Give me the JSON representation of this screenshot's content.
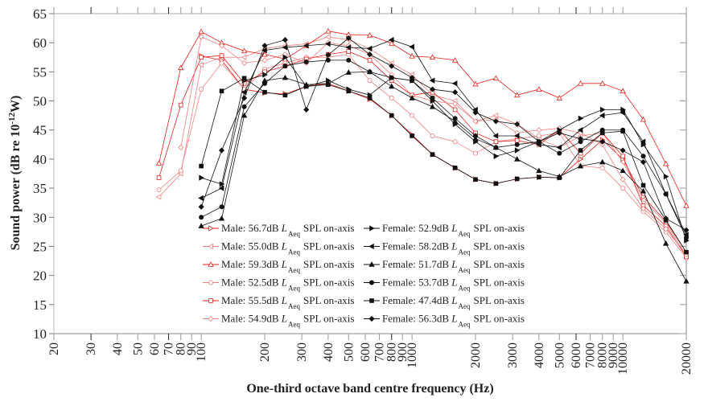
{
  "chart_data": {
    "type": "line",
    "title": "",
    "xlabel": "One-third octave band centre frequency (Hz)",
    "ylabel_main": "Sound power (dB re 10",
    "ylabel_sup": "-12",
    "ylabel_end": "W)",
    "xscale": "log",
    "xlim": [
      20,
      20000
    ],
    "ylim": [
      10,
      65
    ],
    "grid": false,
    "legend_position": "bottom-center",
    "yticks": [
      10,
      15,
      20,
      25,
      30,
      35,
      40,
      45,
      50,
      55,
      60,
      65
    ],
    "xticks": [
      20,
      30,
      40,
      50,
      60,
      70,
      80,
      90,
      100,
      200,
      300,
      400,
      500,
      600,
      700,
      800,
      900,
      1000,
      2000,
      3000,
      4000,
      5000,
      6000,
      7000,
      8000,
      9000,
      10000,
      20000
    ],
    "x": [
      63,
      80,
      100,
      125,
      160,
      200,
      250,
      315,
      400,
      500,
      630,
      800,
      1000,
      1250,
      1600,
      2000,
      2500,
      3150,
      4000,
      5000,
      6300,
      8000,
      10000,
      12500,
      16000,
      20000
    ],
    "series": [
      {
        "name": "Male: 56.7dB",
        "suffix": "SPL on-axis",
        "group": "male",
        "color": "#e8201a",
        "marker": "triangle-right-open",
        "values": [
          null,
          null,
          57.7,
          57.0,
          52.0,
          51.4,
          51.2,
          52.5,
          53.0,
          51.7,
          50.3,
          47.5,
          44.2,
          40.8,
          38.5,
          36.5,
          35.8,
          36.6,
          36.9,
          36.8,
          40.0,
          43.3,
          40.0,
          33.5,
          29.3,
          24.0
        ]
      },
      {
        "name": "Male: 55.0dB",
        "suffix": "SPL on-axis",
        "group": "male",
        "color": "#f08080",
        "marker": "triangle-left-open",
        "values": [
          33.5,
          37.5,
          56.2,
          57.5,
          57.5,
          59.0,
          59.5,
          59.8,
          61.0,
          60.5,
          59.0,
          56.5,
          54.5,
          51.0,
          50.0,
          46.5,
          47.5,
          46.0,
          43.5,
          42.0,
          44.0,
          44.5,
          39.5,
          33.0,
          29.0,
          23.5
        ]
      },
      {
        "name": "Male: 59.3dB",
        "suffix": "SPL on-axis",
        "group": "male",
        "color": "#e8201a",
        "marker": "triangle-up-open",
        "values": [
          39.3,
          55.7,
          61.9,
          60.0,
          58.6,
          58.0,
          57.2,
          59.5,
          62.0,
          61.4,
          61.3,
          59.9,
          57.7,
          57.5,
          57.0,
          52.9,
          53.9,
          51.0,
          52.0,
          50.5,
          53.0,
          53.0,
          51.7,
          46.8,
          39.2,
          32.0
        ]
      },
      {
        "name": "Male: 52.5dB",
        "suffix": "SPL on-axis",
        "group": "male",
        "color": "#f08080",
        "marker": "circle-open",
        "values": [
          34.7,
          38.0,
          52.0,
          56.5,
          52.0,
          55.5,
          56.5,
          57.5,
          57.5,
          58.0,
          53.5,
          50.5,
          47.5,
          44.0,
          43.0,
          41.0,
          43.0,
          43.5,
          44.0,
          44.5,
          38.8,
          38.5,
          35.0,
          31.0,
          27.5,
          23.0
        ]
      },
      {
        "name": "Male: 55.5dB",
        "suffix": "SPL on-axis",
        "group": "male",
        "color": "#e8201a",
        "marker": "square-open",
        "values": [
          36.8,
          49.3,
          57.5,
          57.8,
          53.0,
          55.0,
          56.0,
          57.2,
          58.0,
          58.5,
          57.0,
          53.5,
          51.0,
          51.5,
          48.5,
          44.5,
          43.0,
          43.2,
          42.5,
          45.0,
          41.0,
          44.5,
          40.5,
          32.0,
          28.5,
          23.2
        ]
      },
      {
        "name": "Male: 54.9dB",
        "suffix": "SPL on-axis",
        "group": "male",
        "color": "#f08080",
        "marker": "diamond-open",
        "values": [
          null,
          42.0,
          61.0,
          59.5,
          56.5,
          57.0,
          58.0,
          56.5,
          60.0,
          59.5,
          58.0,
          54.5,
          51.0,
          50.0,
          49.5,
          46.5,
          46.8,
          44.5,
          45.0,
          45.3,
          44.5,
          42.5,
          36.5,
          31.5,
          28.0,
          23.6
        ]
      },
      {
        "name": "Female: 52.9dB",
        "suffix": "SPL on-axis",
        "group": "female",
        "color": "#111111",
        "marker": "triangle-right-filled",
        "values": [
          null,
          null,
          36.8,
          35.7,
          53.5,
          54.5,
          57.5,
          52.5,
          53.5,
          52.0,
          51.0,
          54.0,
          53.5,
          50.0,
          46.0,
          43.0,
          40.5,
          41.5,
          43.0,
          45.0,
          47.0,
          48.5,
          48.5,
          42.5,
          37.0,
          26.0
        ]
      },
      {
        "name": "Female: 58.2dB",
        "suffix": "SPL on-axis",
        "group": "female",
        "color": "#111111",
        "marker": "triangle-left-filled",
        "values": [
          null,
          null,
          33.3,
          35.0,
          51.5,
          58.7,
          59.2,
          59.5,
          59.8,
          59.2,
          59.0,
          60.5,
          59.3,
          53.5,
          53.0,
          48.5,
          44.0,
          44.0,
          42.5,
          42.0,
          45.0,
          47.5,
          48.0,
          43.0,
          34.0,
          27.0
        ]
      },
      {
        "name": "Female: 51.7dB",
        "suffix": "SPL on-axis",
        "group": "female",
        "color": "#111111",
        "marker": "triangle-up-filled",
        "values": [
          null,
          null,
          28.5,
          29.8,
          47.5,
          53.5,
          54.0,
          52.8,
          53.0,
          54.9,
          55.0,
          52.5,
          50.5,
          49.0,
          46.5,
          43.5,
          42.0,
          40.0,
          38.0,
          37.0,
          38.8,
          39.5,
          38.0,
          34.5,
          25.5,
          19.0
        ]
      },
      {
        "name": "Female: 53.7dB",
        "suffix": "SPL on-axis",
        "group": "female",
        "color": "#111111",
        "marker": "circle-filled",
        "values": [
          null,
          null,
          30.0,
          31.8,
          49.0,
          53.0,
          56.0,
          56.7,
          57.0,
          57.0,
          55.0,
          54.0,
          53.5,
          50.5,
          47.0,
          44.0,
          42.0,
          42.5,
          43.0,
          41.0,
          43.0,
          45.0,
          45.0,
          40.5,
          34.0,
          26.5
        ]
      },
      {
        "name": "Female: 47.4dB",
        "suffix": "SPL on-axis",
        "group": "female",
        "color": "#111111",
        "marker": "square-filled",
        "values": [
          null,
          null,
          38.8,
          51.7,
          53.9,
          51.5,
          51.0,
          52.5,
          52.8,
          51.7,
          50.5,
          47.5,
          44.0,
          40.8,
          38.5,
          36.5,
          35.8,
          36.6,
          36.9,
          36.8,
          41.5,
          44.5,
          44.8,
          35.5,
          29.5,
          24.0
        ]
      },
      {
        "name": "Female: 56.3dB",
        "suffix": "SPL on-axis",
        "group": "female",
        "color": "#111111",
        "marker": "diamond-filled",
        "values": [
          null,
          null,
          31.8,
          41.5,
          50.5,
          59.5,
          60.5,
          48.5,
          57.9,
          60.8,
          58.0,
          56.0,
          54.0,
          52.0,
          51.5,
          48.0,
          46.5,
          46.0,
          43.0,
          44.5,
          43.5,
          43.0,
          41.5,
          39.5,
          29.8,
          27.8
        ]
      }
    ]
  },
  "legend": {
    "sub_label": "Aeq",
    "L": "L"
  }
}
